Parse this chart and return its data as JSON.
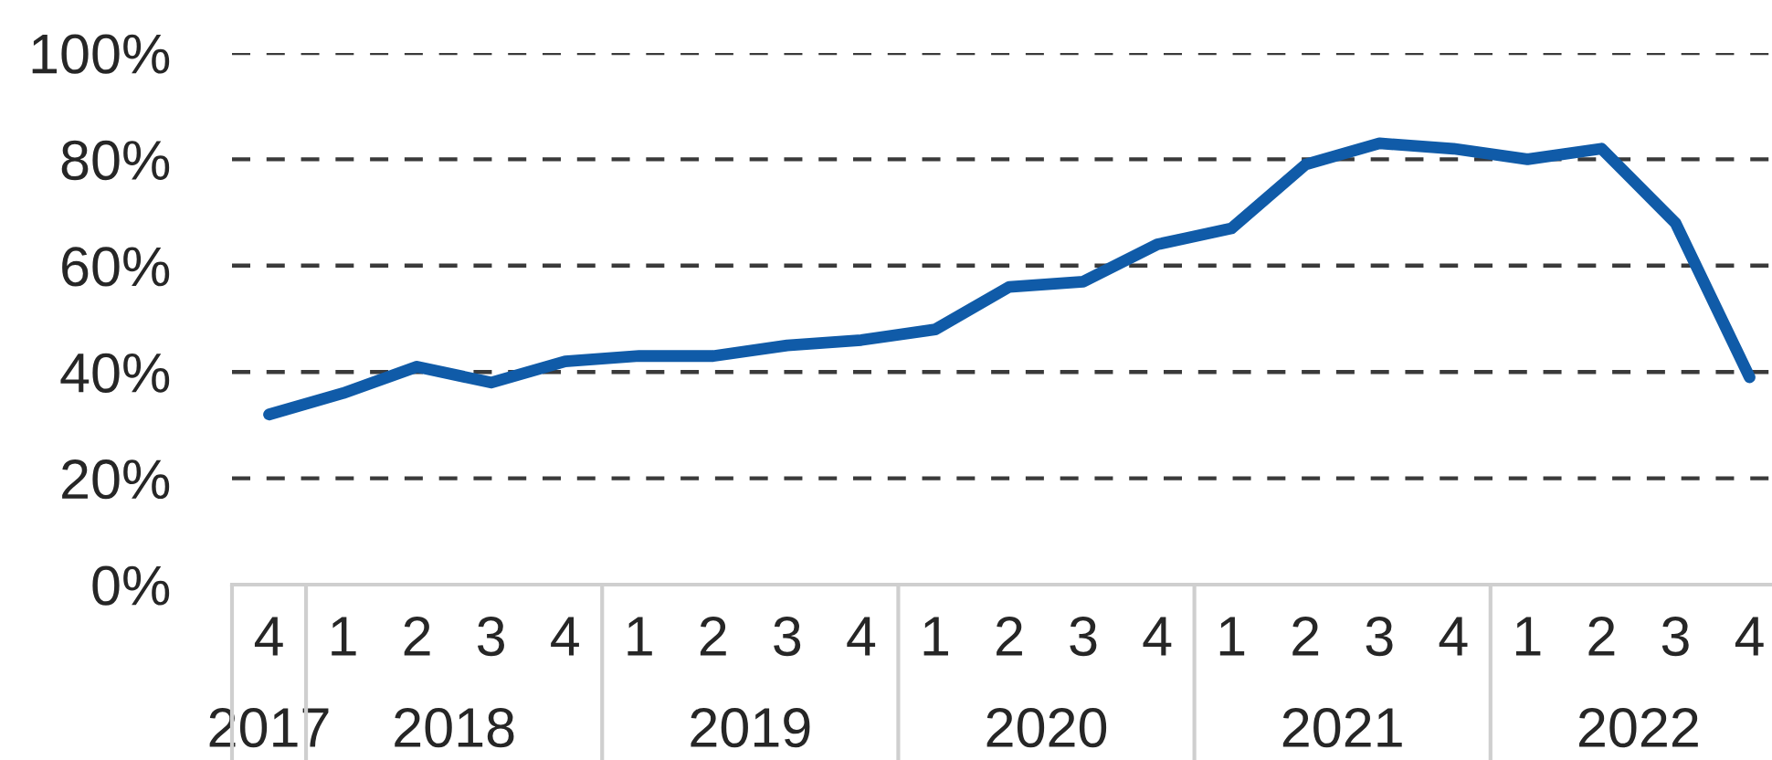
{
  "chart_data": {
    "type": "line",
    "categories": [
      "4",
      "1",
      "2",
      "3",
      "4",
      "1",
      "2",
      "3",
      "4",
      "1",
      "2",
      "3",
      "4",
      "1",
      "2",
      "3",
      "4",
      "1",
      "2",
      "3",
      "4"
    ],
    "values": [
      32,
      36,
      41,
      38,
      42,
      43,
      43,
      45,
      46,
      48,
      56,
      57,
      64,
      67,
      79,
      83,
      82,
      80,
      82,
      68,
      39
    ],
    "color": "#105ba8",
    "x2lim": [
      2017.25,
      2022.5
    ],
    "x2ticks": [
      {
        "value": 2017.375,
        "label": "2017"
      },
      2018,
      2019,
      2020,
      2021,
      2022
    ],
    "ylim": [
      0,
      100
    ],
    "yticks": [
      {
        "value": 0,
        "label": "0%"
      },
      {
        "value": 20,
        "label": "20%"
      },
      {
        "value": 40,
        "label": "40%"
      },
      {
        "value": 60,
        "label": "60%"
      },
      {
        "value": 80,
        "label": "80%"
      },
      {
        "value": 100,
        "label": "100%"
      }
    ],
    "grid": "y"
  }
}
